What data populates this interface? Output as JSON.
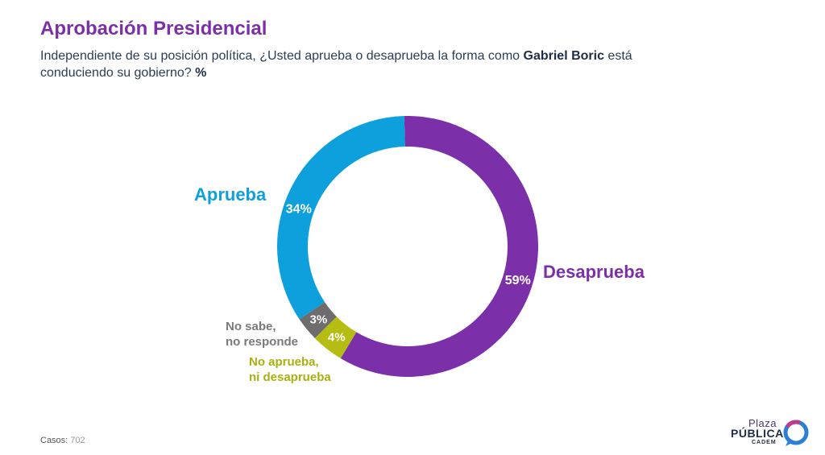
{
  "header": {
    "title": "Aprobación Presidencial",
    "question_pre": "Independiente de su posición política, ¿Usted aprueba o desaprueba la forma como ",
    "question_bold": "Gabriel Boric",
    "question_post": " está conduciendo su gobierno? ",
    "question_unit": "%"
  },
  "chart_data": {
    "type": "pie",
    "title": "Aprobación Presidencial",
    "unit": "%",
    "slices": [
      {
        "label": "Desaprueba",
        "value": 59,
        "value_label": "59%",
        "color": "#7b2fa8"
      },
      {
        "label": "No aprueba, ni desaprueba",
        "value": 4,
        "value_label": "4%",
        "color": "#b5bd12"
      },
      {
        "label": "No sabe, no responde",
        "value": 3,
        "value_label": "3%",
        "color": "#6d6d6d"
      },
      {
        "label": "Aprueba",
        "value": 34,
        "value_label": "34%",
        "color": "#0da0dc"
      }
    ],
    "legend_labels": {
      "aprueba": "Aprueba",
      "desaprueba": "Desaprueba",
      "ns_line1": "No sabe,",
      "ns_line2": "no responde",
      "na_line1": "No aprueba,",
      "na_line2": "ni desaprueba"
    }
  },
  "footer": {
    "cases_label": "Casos:",
    "cases_value": "702"
  },
  "logo": {
    "line1": "Plaza",
    "line2": "PÚBLICA",
    "line3": "CADEM"
  }
}
